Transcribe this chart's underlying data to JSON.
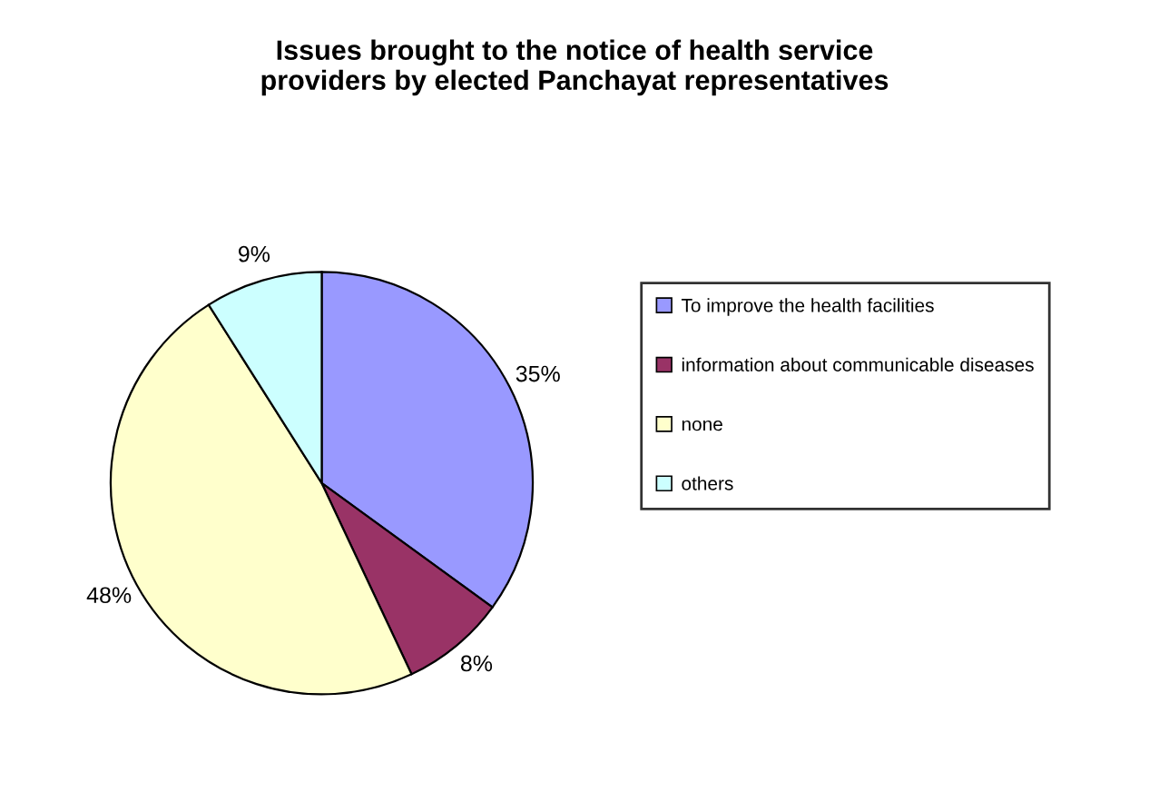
{
  "chart_data": {
    "type": "pie",
    "title": "Issues brought to the notice of health service\nproviders by elected Panchayat representatives",
    "categories": [
      "To improve the health facilities",
      "information about communicable diseases",
      "none",
      "others"
    ],
    "values": [
      35,
      8,
      48,
      9
    ],
    "colors": [
      "#9999ff",
      "#993366",
      "#ffffcc",
      "#ccffff"
    ],
    "value_labels": [
      "35%",
      "8%",
      "48%",
      "9%"
    ],
    "legend": "right"
  }
}
